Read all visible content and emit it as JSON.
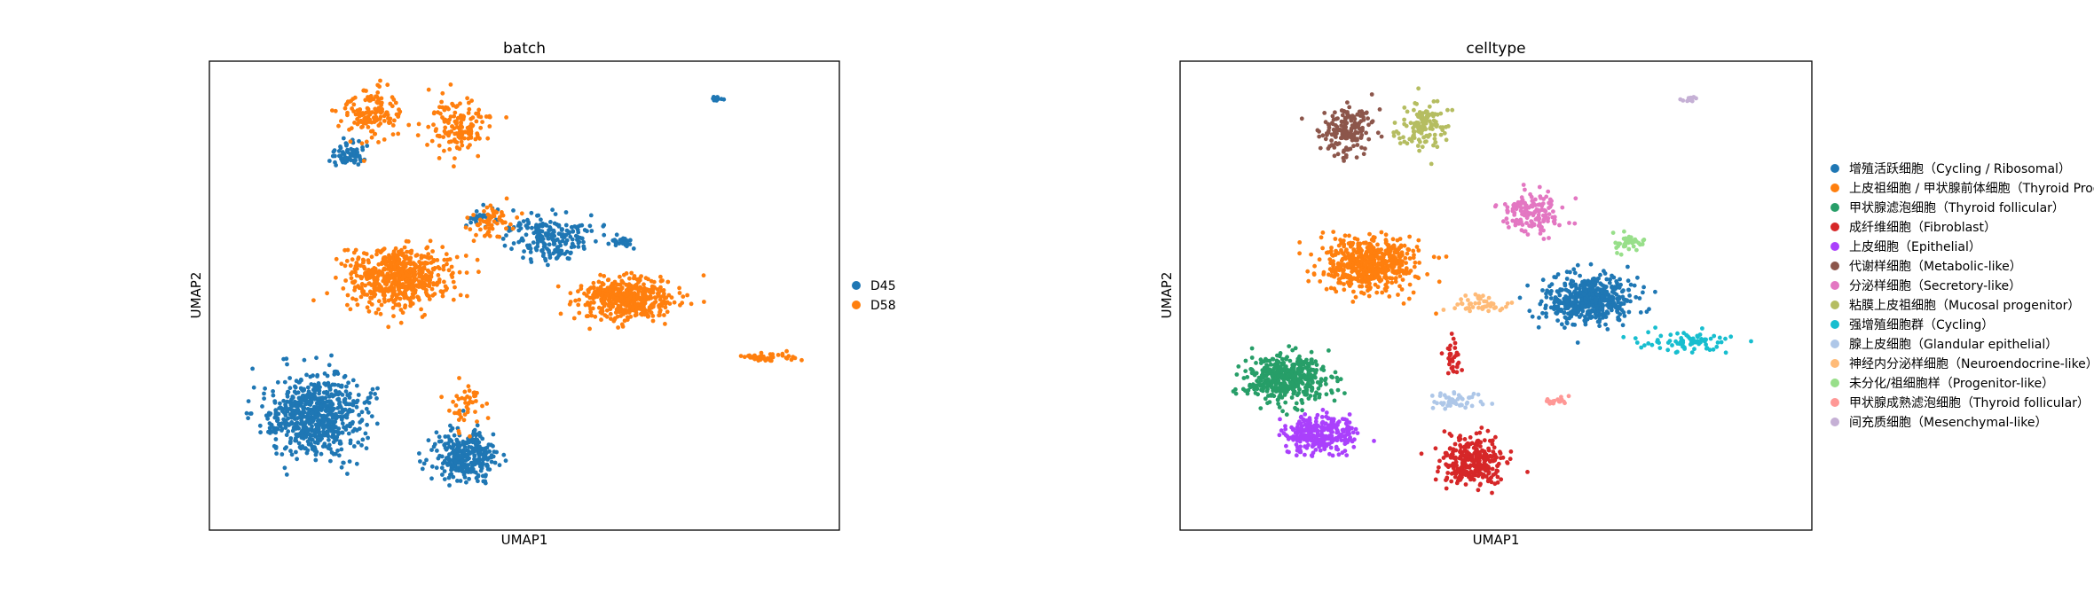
{
  "chart_data": [
    {
      "type": "scatter",
      "title": "batch",
      "xlabel": "UMAP1",
      "ylabel": "UMAP2",
      "grid": false,
      "legend_placement": "right",
      "legend": [
        {
          "label": "D45",
          "color": "#1f77b4"
        },
        {
          "label": "D58",
          "color": "#ff7f0e"
        }
      ],
      "series": [
        {
          "name": "D45",
          "color": "#1f77b4",
          "clusters": [
            {
              "x": 2.5,
              "y": 3.5,
              "sx": 1.3,
              "sy": 1.3,
              "n": 700
            },
            {
              "x": 7.0,
              "y": 2.0,
              "sx": 0.8,
              "sy": 0.9,
              "n": 300
            },
            {
              "x": 9.5,
              "y": 10.0,
              "sx": 1.0,
              "sy": 0.8,
              "n": 200
            },
            {
              "x": 3.5,
              "y": 13.0,
              "sx": 0.6,
              "sy": 0.4,
              "n": 70
            },
            {
              "x": 7.6,
              "y": 10.7,
              "sx": 0.4,
              "sy": 0.3,
              "n": 30
            },
            {
              "x": 11.7,
              "y": 9.8,
              "sx": 0.3,
              "sy": 0.2,
              "n": 25
            },
            {
              "x": 14.5,
              "y": 15.0,
              "sx": 0.2,
              "sy": 0.1,
              "n": 12
            }
          ]
        },
        {
          "name": "D58",
          "color": "#ff7f0e",
          "clusters": [
            {
              "x": 5.0,
              "y": 8.5,
              "sx": 1.4,
              "sy": 1.0,
              "n": 600
            },
            {
              "x": 4.2,
              "y": 14.5,
              "sx": 0.8,
              "sy": 0.8,
              "n": 150
            },
            {
              "x": 6.8,
              "y": 14.0,
              "sx": 0.8,
              "sy": 0.9,
              "n": 150
            },
            {
              "x": 11.8,
              "y": 7.7,
              "sx": 1.3,
              "sy": 0.7,
              "n": 450
            },
            {
              "x": 16.0,
              "y": 5.6,
              "sx": 0.8,
              "sy": 0.15,
              "n": 45
            },
            {
              "x": 7.0,
              "y": 3.8,
              "sx": 0.6,
              "sy": 0.8,
              "n": 45
            },
            {
              "x": 7.8,
              "y": 10.5,
              "sx": 0.7,
              "sy": 0.6,
              "n": 60
            }
          ]
        }
      ]
    },
    {
      "type": "scatter",
      "title": "celltype",
      "xlabel": "UMAP1",
      "ylabel": "UMAP2",
      "grid": false,
      "legend_placement": "right",
      "legend": [
        {
          "label": "增殖活跃细胞（Cycling / Ribosomal）",
          "color": "#1f77b4"
        },
        {
          "label": "上皮祖细胞 / 甲状腺前体细胞（Thyroid Prog",
          "color": "#ff7f0e"
        },
        {
          "label": "甲状腺滤泡细胞（Thyroid follicular）",
          "color": "#279e68"
        },
        {
          "label": "成纤维细胞（Fibroblast）",
          "color": "#d62728"
        },
        {
          "label": "上皮细胞（Epithelial）",
          "color": "#aa40fc"
        },
        {
          "label": "代谢样细胞（Metabolic-like）",
          "color": "#8c564b"
        },
        {
          "label": "分泌样细胞（Secretory-like）",
          "color": "#e377c2"
        },
        {
          "label": "粘膜上皮祖细胞（Mucosal progenitor）",
          "color": "#b5bd61"
        },
        {
          "label": "强增殖细胞群（Cycling）",
          "color": "#17becf"
        },
        {
          "label": "腺上皮细胞（Glandular epithelial）",
          "color": "#aec7e8"
        },
        {
          "label": "神经内分泌样细胞（Neuroendocrine-like）",
          "color": "#ffbb78"
        },
        {
          "label": "未分化/祖细胞样（Progenitor-like）",
          "color": "#98df8a"
        },
        {
          "label": "甲状腺成熟滤泡细胞（Thyroid follicular）",
          "color": "#ff9896"
        },
        {
          "label": "间充质细胞（Mesenchymal-like）",
          "color": "#c5b0d5"
        }
      ],
      "series": [
        {
          "name": "增殖活跃细胞（Cycling / Ribosomal）",
          "color": "#1f77b4",
          "clusters": [
            {
              "x": 11.5,
              "y": 7.7,
              "sx": 1.2,
              "sy": 0.8,
              "n": 500
            }
          ]
        },
        {
          "name": "上皮祖细胞 / 甲状腺前体细胞（Thyroid Prog",
          "color": "#ff7f0e",
          "clusters": [
            {
              "x": 5.0,
              "y": 9.0,
              "sx": 1.3,
              "sy": 0.9,
              "n": 550
            }
          ]
        },
        {
          "name": "甲状腺滤泡细胞（Thyroid follicular）",
          "color": "#279e68",
          "clusters": [
            {
              "x": 2.5,
              "y": 4.8,
              "sx": 1.1,
              "sy": 0.8,
              "n": 450
            }
          ]
        },
        {
          "name": "成纤维细胞（Fibroblast）",
          "color": "#d62728",
          "clusters": [
            {
              "x": 8.0,
              "y": 1.8,
              "sx": 0.8,
              "sy": 0.8,
              "n": 300
            },
            {
              "x": 7.5,
              "y": 5.5,
              "sx": 0.3,
              "sy": 0.6,
              "n": 30
            }
          ]
        },
        {
          "name": "上皮细胞（Epithelial）",
          "color": "#aa40fc",
          "clusters": [
            {
              "x": 3.5,
              "y": 2.8,
              "sx": 0.9,
              "sy": 0.6,
              "n": 300
            }
          ]
        },
        {
          "name": "代谢样细胞（Metabolic-like）",
          "color": "#8c564b",
          "clusters": [
            {
              "x": 4.3,
              "y": 13.8,
              "sx": 0.7,
              "sy": 0.8,
              "n": 180
            }
          ]
        },
        {
          "name": "分泌样细胞（Secretory-like）",
          "color": "#e377c2",
          "clusters": [
            {
              "x": 9.8,
              "y": 10.8,
              "sx": 0.8,
              "sy": 0.7,
              "n": 150
            }
          ]
        },
        {
          "name": "粘膜上皮祖细胞（Mucosal progenitor）",
          "color": "#b5bd61",
          "clusters": [
            {
              "x": 6.6,
              "y": 14.0,
              "sx": 0.6,
              "sy": 0.8,
              "n": 130
            }
          ]
        },
        {
          "name": "强增殖细胞群（Cycling）",
          "color": "#17becf",
          "clusters": [
            {
              "x": 14.6,
              "y": 6.2,
              "sx": 1.2,
              "sy": 0.4,
              "n": 80
            }
          ]
        },
        {
          "name": "腺上皮细胞（Glandular epithelial）",
          "color": "#aec7e8",
          "clusters": [
            {
              "x": 7.5,
              "y": 4.0,
              "sx": 0.7,
              "sy": 0.3,
              "n": 50
            }
          ]
        },
        {
          "name": "神经内分泌样细胞（Neuroendocrine-like）",
          "color": "#ffbb78",
          "clusters": [
            {
              "x": 8.3,
              "y": 7.5,
              "sx": 0.7,
              "sy": 0.3,
              "n": 50
            }
          ]
        },
        {
          "name": "未分化/祖细胞样（Progenitor-like）",
          "color": "#98df8a",
          "clusters": [
            {
              "x": 12.7,
              "y": 9.8,
              "sx": 0.5,
              "sy": 0.3,
              "n": 40
            }
          ]
        },
        {
          "name": "甲状腺成熟滤泡细胞（Thyroid follicular）",
          "color": "#ff9896",
          "clusters": [
            {
              "x": 10.5,
              "y": 4.0,
              "sx": 0.3,
              "sy": 0.15,
              "n": 20
            }
          ]
        },
        {
          "name": "间充质细胞（Mesenchymal-like）",
          "color": "#c5b0d5",
          "clusters": [
            {
              "x": 14.5,
              "y": 15.0,
              "sx": 0.2,
              "sy": 0.1,
              "n": 12
            }
          ]
        }
      ]
    }
  ]
}
